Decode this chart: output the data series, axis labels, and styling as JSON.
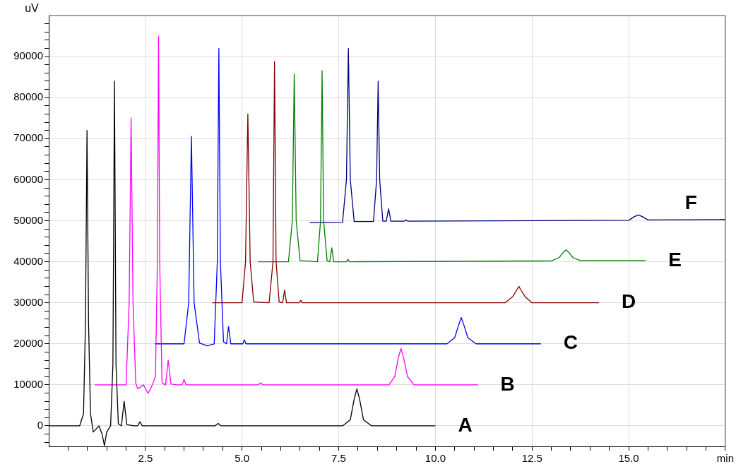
{
  "chart_data": {
    "type": "line",
    "ylabel": "uV",
    "xlim": [
      0,
      17.5
    ],
    "ylim": [
      -5000,
      100000
    ],
    "xticks": [
      {
        "value": 0.5,
        "label": null
      },
      {
        "value": 1,
        "label": null
      },
      {
        "value": 1.5,
        "label": null
      },
      {
        "value": 2,
        "label": null
      },
      {
        "value": 2.5,
        "label": "2.5"
      },
      {
        "value": 3,
        "label": null
      },
      {
        "value": 3.5,
        "label": null
      },
      {
        "value": 4,
        "label": null
      },
      {
        "value": 4.5,
        "label": null
      },
      {
        "value": 5,
        "label": "5.0"
      },
      {
        "value": 5.5,
        "label": null
      },
      {
        "value": 6,
        "label": null
      },
      {
        "value": 6.5,
        "label": null
      },
      {
        "value": 7,
        "label": null
      },
      {
        "value": 7.5,
        "label": "7.5"
      },
      {
        "value": 8,
        "label": null
      },
      {
        "value": 8.5,
        "label": null
      },
      {
        "value": 9,
        "label": null
      },
      {
        "value": 9.5,
        "label": null
      },
      {
        "value": 10,
        "label": "10.0"
      },
      {
        "value": 10.5,
        "label": null
      },
      {
        "value": 11,
        "label": null
      },
      {
        "value": 11.5,
        "label": null
      },
      {
        "value": 12,
        "label": null
      },
      {
        "value": 12.5,
        "label": "12.5"
      },
      {
        "value": 13,
        "label": null
      },
      {
        "value": 13.5,
        "label": null
      },
      {
        "value": 14,
        "label": null
      },
      {
        "value": 14.5,
        "label": null
      },
      {
        "value": 15,
        "label": "15.0"
      },
      {
        "value": 15.5,
        "label": null
      },
      {
        "value": 16,
        "label": null
      },
      {
        "value": 16.5,
        "label": null
      },
      {
        "value": 17,
        "label": null
      },
      {
        "value": 17.5,
        "label": "min"
      }
    ],
    "yticks": [
      {
        "value": -4000,
        "label": null
      },
      {
        "value": -2000,
        "label": null
      },
      0,
      {
        "value": 2000,
        "label": null
      },
      {
        "value": 4000,
        "label": null
      },
      {
        "value": 6000,
        "label": null
      },
      {
        "value": 8000,
        "label": null
      },
      10000,
      {
        "value": 12000,
        "label": null
      },
      {
        "value": 14000,
        "label": null
      },
      {
        "value": 16000,
        "label": null
      },
      {
        "value": 18000,
        "label": null
      },
      20000,
      {
        "value": 22000,
        "label": null
      },
      {
        "value": 24000,
        "label": null
      },
      {
        "value": 26000,
        "label": null
      },
      {
        "value": 28000,
        "label": null
      },
      30000,
      {
        "value": 32000,
        "label": null
      },
      {
        "value": 34000,
        "label": null
      },
      {
        "value": 36000,
        "label": null
      },
      {
        "value": 38000,
        "label": null
      },
      40000,
      {
        "value": 42000,
        "label": null
      },
      {
        "value": 44000,
        "label": null
      },
      {
        "value": 46000,
        "label": null
      },
      {
        "value": 48000,
        "label": null
      },
      50000,
      {
        "value": 52000,
        "label": null
      },
      {
        "value": 54000,
        "label": null
      },
      {
        "value": 56000,
        "label": null
      },
      {
        "value": 58000,
        "label": null
      },
      60000,
      {
        "value": 62000,
        "label": null
      },
      {
        "value": 64000,
        "label": null
      },
      {
        "value": 66000,
        "label": null
      },
      {
        "value": 68000,
        "label": null
      },
      70000,
      {
        "value": 72000,
        "label": null
      },
      {
        "value": 74000,
        "label": null
      },
      {
        "value": 76000,
        "label": null
      },
      {
        "value": 78000,
        "label": null
      },
      80000,
      {
        "value": 82000,
        "label": null
      },
      {
        "value": 84000,
        "label": null
      },
      {
        "value": 86000,
        "label": null
      },
      {
        "value": 88000,
        "label": null
      },
      90000,
      {
        "value": 92000,
        "label": null
      },
      {
        "value": 94000,
        "label": null
      },
      {
        "value": 96000,
        "label": null
      },
      {
        "value": 98000,
        "label": null
      }
    ],
    "grid": true,
    "legend": false,
    "series": [
      {
        "name": "A",
        "color": "#000000",
        "x": [
          0,
          0.8,
          0.9,
          0.95,
          0.99,
          1.03,
          1.08,
          1.15,
          1.3,
          1.38,
          1.44,
          1.5,
          1.6,
          1.66,
          1.7,
          1.74,
          1.8,
          1.88,
          1.95,
          2.02,
          2.2,
          2.3,
          2.36,
          2.42,
          4.3,
          4.38,
          4.46,
          7.6,
          7.8,
          7.9,
          7.97,
          8.04,
          8.14,
          8.35,
          10.0
        ],
        "values": [
          0,
          0,
          3000,
          25000,
          72000,
          25000,
          3000,
          -1500,
          0,
          -2000,
          -4800,
          -1500,
          0,
          15000,
          84000,
          15000,
          500,
          0,
          6000,
          300,
          0,
          0,
          1000,
          0,
          0,
          600,
          0,
          0,
          1500,
          6500,
          9000,
          6500,
          1500,
          0,
          0
        ]
      },
      {
        "name": "B",
        "color": "#ff00ff",
        "x": [
          1.19,
          2.0,
          2.08,
          2.13,
          2.18,
          2.25,
          2.3,
          2.45,
          2.57,
          2.68,
          2.76,
          2.81,
          2.84,
          2.87,
          2.93,
          3.02,
          3.09,
          3.16,
          3.3,
          3.45,
          3.5,
          3.55,
          5.42,
          5.48,
          5.54,
          8.8,
          8.95,
          9.04,
          9.11,
          9.18,
          9.28,
          9.45,
          11.1
        ],
        "values": [
          10000,
          10000,
          30000,
          75000,
          30000,
          10500,
          9000,
          10000,
          7900,
          10000,
          12000,
          40000,
          95000,
          40000,
          10500,
          10000,
          16000,
          10200,
          10000,
          10000,
          11300,
          10000,
          10000,
          10500,
          10000,
          10000,
          12000,
          16500,
          18900,
          16500,
          12000,
          10000,
          10000
        ]
      },
      {
        "name": "C",
        "color": "#0000ff",
        "x": [
          2.74,
          3.5,
          3.62,
          3.69,
          3.76,
          3.9,
          4.1,
          4.28,
          4.36,
          4.4,
          4.44,
          4.52,
          4.6,
          4.65,
          4.71,
          4.85,
          5.02,
          5.06,
          5.1,
          10.3,
          10.5,
          10.6,
          10.67,
          10.74,
          10.84,
          11.05,
          12.73
        ],
        "values": [
          20000,
          20000,
          30000,
          70600,
          30000,
          20200,
          19500,
          20000,
          40000,
          92000,
          40000,
          20500,
          20000,
          24200,
          20000,
          20000,
          20000,
          21000,
          20000,
          20000,
          21500,
          24500,
          26400,
          24500,
          21500,
          20000,
          20000
        ]
      },
      {
        "name": "D",
        "color": "#800000",
        "x": [
          4.23,
          5.0,
          5.09,
          5.15,
          5.21,
          5.3,
          5.7,
          5.8,
          5.84,
          5.88,
          5.96,
          6.05,
          6.1,
          6.15,
          6.3,
          6.48,
          6.52,
          6.56,
          11.8,
          12.0,
          12.1,
          12.16,
          12.22,
          12.32,
          12.5,
          14.23
        ],
        "values": [
          30000,
          30000,
          40000,
          76000,
          40000,
          30200,
          30000,
          40000,
          88800,
          40000,
          30200,
          30000,
          33100,
          30000,
          30000,
          30000,
          30600,
          30000,
          30000,
          31500,
          33000,
          34000,
          33000,
          31500,
          30000,
          30000
        ]
      },
      {
        "name": "E",
        "color": "#008000",
        "x": [
          5.41,
          6.2,
          6.3,
          6.35,
          6.4,
          6.5,
          6.95,
          7.03,
          7.07,
          7.11,
          7.2,
          7.27,
          7.32,
          7.37,
          7.5,
          7.7,
          7.74,
          7.78,
          13.0,
          13.2,
          13.3,
          13.38,
          13.46,
          13.56,
          13.75,
          15.44
        ],
        "values": [
          40000,
          40000,
          50000,
          85700,
          50000,
          40300,
          40000,
          50000,
          86600,
          50000,
          40200,
          40000,
          43400,
          40000,
          40000,
          40000,
          40600,
          40000,
          40200,
          41000,
          42200,
          42900,
          42200,
          41000,
          40300,
          40300
        ]
      },
      {
        "name": "F",
        "color": "#000080",
        "x": [
          6.75,
          7.6,
          7.7,
          7.75,
          7.8,
          7.9,
          8.4,
          8.48,
          8.52,
          8.56,
          8.64,
          8.73,
          8.79,
          8.85,
          9.0,
          9.2,
          9.24,
          9.28,
          15.0,
          15.15,
          15.25,
          15.35,
          15.5,
          17.5
        ],
        "values": [
          49500,
          49600,
          60000,
          92000,
          60000,
          49800,
          49800,
          60000,
          84000,
          60000,
          49900,
          49900,
          52900,
          49900,
          49900,
          49900,
          50200,
          49900,
          50100,
          51000,
          51400,
          51000,
          50200,
          50300
        ]
      }
    ]
  }
}
